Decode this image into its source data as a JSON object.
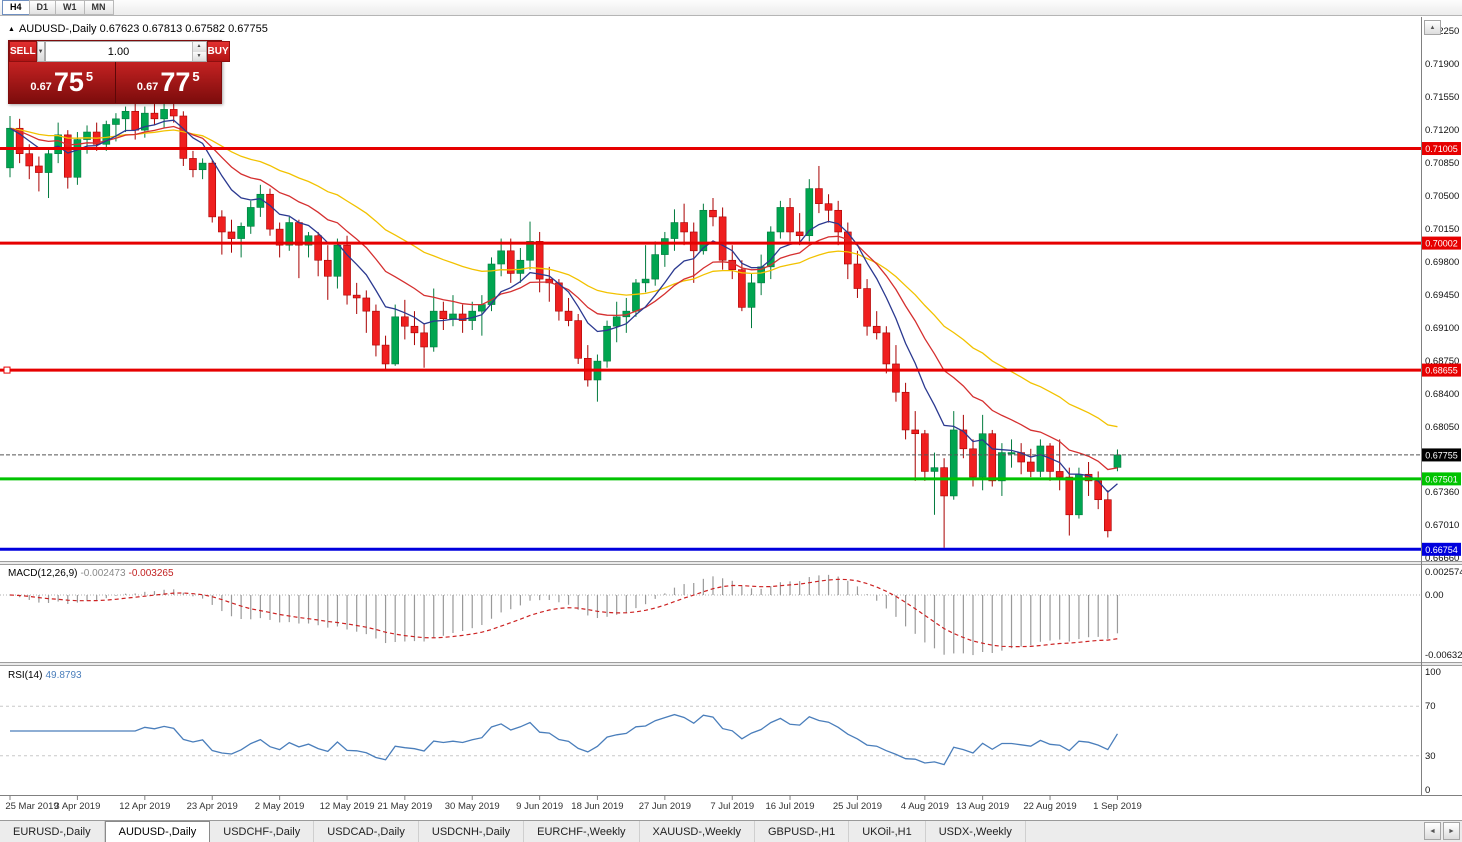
{
  "icons": {
    "collapse": "▲",
    "dropdown": "▼",
    "spin_up": "▲",
    "spin_down": "▼",
    "scroll_up": "▲",
    "tab_prev": "◄",
    "tab_next": "►"
  },
  "toolbar": {
    "timeframes": [
      {
        "label": "H4",
        "active": true
      },
      {
        "label": "D1",
        "active": false
      },
      {
        "label": "W1",
        "active": false
      },
      {
        "label": "MN",
        "active": false
      }
    ]
  },
  "chart_header": {
    "line": "AUDUSD-,Daily  0.67623 0.67813 0.67582 0.67755",
    "symbol": "AUDUSD-,Daily",
    "open": "0.67623",
    "high": "0.67813",
    "low": "0.67582",
    "close": "0.67755"
  },
  "trade_panel": {
    "sell_label": "SELL",
    "buy_label": "BUY",
    "volume": "1.00",
    "sell_price": {
      "prefix": "0.67",
      "big": "75",
      "sup": "5"
    },
    "buy_price": {
      "prefix": "0.67",
      "big": "77",
      "sup": "5"
    }
  },
  "price_scale": {
    "labels": [
      "0.72250",
      "0.71900",
      "0.71550",
      "0.71200",
      "0.70850",
      "0.70500",
      "0.70150",
      "0.69800",
      "0.69450",
      "0.69100",
      "0.68750",
      "0.68400",
      "0.68050",
      "0.67360",
      "0.67010",
      "0.66660"
    ]
  },
  "current_price": {
    "value": 0.67755,
    "label": "0.67755",
    "color": "#000000"
  },
  "hlines": [
    {
      "value": 0.71005,
      "label": "0.71005",
      "color": "#e60000",
      "width": 3,
      "marker": false
    },
    {
      "value": 0.70002,
      "label": "0.70002",
      "color": "#e60000",
      "width": 3,
      "marker": false
    },
    {
      "value": 0.68655,
      "label": "0.68655",
      "color": "#e60000",
      "width": 3,
      "marker": true
    },
    {
      "value": 0.67501,
      "label": "0.67501",
      "color": "#00c300",
      "width": 3,
      "marker": false
    },
    {
      "value": 0.66754,
      "label": "0.66754",
      "color": "#0000dd",
      "width": 3,
      "marker": false
    }
  ],
  "indicators": {
    "ma": [
      {
        "period": 32,
        "color": "#f2c200"
      },
      {
        "period": 16,
        "color": "#d53030"
      },
      {
        "period": 8,
        "color": "#2b3990"
      }
    ],
    "macd": {
      "label": "MACD(12,26,9)",
      "value_1": "-0.002473",
      "value_2": "-0.003265",
      "fast": 12,
      "slow": 26,
      "signal": 9,
      "scale_top": "0.002574",
      "scale_zero": "0.00",
      "scale_bottom": "-0.006326",
      "histogram_color": "#9a9a9a",
      "signal_color": "#cc2222"
    },
    "rsi": {
      "label": "RSI(14)",
      "value": "49.8793",
      "period": 14,
      "levels": [
        30,
        70
      ],
      "line_color": "#4a7ebb",
      "scale": [
        {
          "label": "100",
          "value": 100
        },
        {
          "label": "70",
          "value": 70
        },
        {
          "label": "30",
          "value": 30
        },
        {
          "label": "0",
          "value": 0
        }
      ]
    }
  },
  "x_axis": {
    "ticks": [
      {
        "index": 0,
        "label": "25 Mar 2019"
      },
      {
        "index": 7,
        "label": "3 Apr 2019"
      },
      {
        "index": 14,
        "label": "12 Apr 2019"
      },
      {
        "index": 21,
        "label": "23 Apr 2019"
      },
      {
        "index": 28,
        "label": "2 May 2019"
      },
      {
        "index": 35,
        "label": "12 May 2019"
      },
      {
        "index": 41,
        "label": "21 May 2019"
      },
      {
        "index": 48,
        "label": "30 May 2019"
      },
      {
        "index": 55,
        "label": "9 Jun 2019"
      },
      {
        "index": 61,
        "label": "18 Jun 2019"
      },
      {
        "index": 68,
        "label": "27 Jun 2019"
      },
      {
        "index": 75,
        "label": "7 Jul 2019"
      },
      {
        "index": 81,
        "label": "16 Jul 2019"
      },
      {
        "index": 88,
        "label": "25 Jul 2019"
      },
      {
        "index": 95,
        "label": "4 Aug 2019"
      },
      {
        "index": 101,
        "label": "13 Aug 2019"
      },
      {
        "index": 108,
        "label": "22 Aug 2019"
      },
      {
        "index": 115,
        "label": "1 Sep 2019"
      }
    ]
  },
  "tabs": {
    "items": [
      {
        "label": "EURUSD-,Daily",
        "active": false
      },
      {
        "label": "AUDUSD-,Daily",
        "active": true
      },
      {
        "label": "USDCHF-,Daily",
        "active": false
      },
      {
        "label": "USDCAD-,Daily",
        "active": false
      },
      {
        "label": "USDCNH-,Daily",
        "active": false
      },
      {
        "label": "EURCHF-,Weekly",
        "active": false
      },
      {
        "label": "XAUUSD-,Weekly",
        "active": false
      },
      {
        "label": "GBPUSD-,H1",
        "active": false
      },
      {
        "label": "UKOil-,H1",
        "active": false
      },
      {
        "label": "USDX-,Weekly",
        "active": false
      }
    ]
  },
  "chart_data": {
    "type": "candlestick",
    "symbol": "AUDUSD",
    "timeframe": "Daily",
    "price_range": {
      "top": 0.724,
      "bottom": 0.6663
    },
    "candles": [
      [
        "2019.03.25",
        0.708,
        0.7135,
        0.707,
        0.7122
      ],
      [
        "2019.03.26",
        0.7122,
        0.7132,
        0.7085,
        0.7095
      ],
      [
        "2019.03.27",
        0.7095,
        0.7105,
        0.7068,
        0.7082
      ],
      [
        "2019.03.28",
        0.7082,
        0.7092,
        0.7055,
        0.7075
      ],
      [
        "2019.03.29",
        0.7075,
        0.7102,
        0.7048,
        0.7095
      ],
      [
        "2019.04.01",
        0.7095,
        0.7128,
        0.7085,
        0.7115
      ],
      [
        "2019.04.02",
        0.7115,
        0.712,
        0.7058,
        0.707
      ],
      [
        "2019.04.03",
        0.707,
        0.7118,
        0.7062,
        0.711
      ],
      [
        "2019.04.04",
        0.711,
        0.7125,
        0.7095,
        0.7118
      ],
      [
        "2019.04.05",
        0.7118,
        0.7128,
        0.7098,
        0.7105
      ],
      [
        "2019.04.08",
        0.7105,
        0.713,
        0.7098,
        0.7126
      ],
      [
        "2019.04.09",
        0.7126,
        0.7138,
        0.7108,
        0.7132
      ],
      [
        "2019.04.10",
        0.7132,
        0.7145,
        0.7118,
        0.714
      ],
      [
        "2019.04.11",
        0.714,
        0.7148,
        0.711,
        0.712
      ],
      [
        "2019.04.12",
        0.712,
        0.7145,
        0.7112,
        0.7138
      ],
      [
        "2019.04.15",
        0.7138,
        0.715,
        0.7125,
        0.7132
      ],
      [
        "2019.04.16",
        0.7132,
        0.7148,
        0.7122,
        0.7142
      ],
      [
        "2019.04.17",
        0.7142,
        0.7152,
        0.7128,
        0.7135
      ],
      [
        "2019.04.18",
        0.7135,
        0.714,
        0.7082,
        0.709
      ],
      [
        "2019.04.19",
        0.709,
        0.7098,
        0.707,
        0.7078
      ],
      [
        "2019.04.22",
        0.7078,
        0.709,
        0.7068,
        0.7085
      ],
      [
        "2019.04.23",
        0.7085,
        0.7088,
        0.7022,
        0.7028
      ],
      [
        "2019.04.24",
        0.7028,
        0.7035,
        0.6988,
        0.7012
      ],
      [
        "2019.04.25",
        0.7012,
        0.7025,
        0.699,
        0.7005
      ],
      [
        "2019.04.26",
        0.7005,
        0.7022,
        0.6985,
        0.7018
      ],
      [
        "2019.04.29",
        0.7018,
        0.7045,
        0.701,
        0.7038
      ],
      [
        "2019.04.30",
        0.7038,
        0.7062,
        0.7028,
        0.7052
      ],
      [
        "2019.05.01",
        0.7052,
        0.7058,
        0.7008,
        0.7015
      ],
      [
        "2019.05.02",
        0.7015,
        0.7022,
        0.6985,
        0.6998
      ],
      [
        "2019.05.03",
        0.6998,
        0.7028,
        0.6992,
        0.7022
      ],
      [
        "2019.05.06",
        0.7022,
        0.7025,
        0.6963,
        0.6998
      ],
      [
        "2019.05.07",
        0.6998,
        0.7012,
        0.6985,
        0.7008
      ],
      [
        "2019.05.08",
        0.7008,
        0.7012,
        0.6965,
        0.6982
      ],
      [
        "2019.05.09",
        0.6982,
        0.6998,
        0.694,
        0.6965
      ],
      [
        "2019.05.10",
        0.6965,
        0.7005,
        0.6952,
        0.6998
      ],
      [
        "2019.05.13",
        0.6998,
        0.7008,
        0.6935,
        0.6945
      ],
      [
        "2019.05.14",
        0.6945,
        0.6958,
        0.6925,
        0.6942
      ],
      [
        "2019.05.15",
        0.6942,
        0.695,
        0.6905,
        0.6928
      ],
      [
        "2019.05.16",
        0.6928,
        0.6935,
        0.688,
        0.6892
      ],
      [
        "2019.05.17",
        0.6892,
        0.6902,
        0.6865,
        0.6872
      ],
      [
        "2019.05.20",
        0.6872,
        0.6935,
        0.687,
        0.6922
      ],
      [
        "2019.05.21",
        0.6922,
        0.694,
        0.6898,
        0.6912
      ],
      [
        "2019.05.22",
        0.6912,
        0.6928,
        0.6892,
        0.6905
      ],
      [
        "2019.05.23",
        0.6905,
        0.6915,
        0.6868,
        0.689
      ],
      [
        "2019.05.24",
        0.689,
        0.6952,
        0.6885,
        0.6928
      ],
      [
        "2019.05.27",
        0.6928,
        0.6938,
        0.6908,
        0.692
      ],
      [
        "2019.05.28",
        0.692,
        0.6945,
        0.6912,
        0.6925
      ],
      [
        "2019.05.29",
        0.6925,
        0.6935,
        0.6905,
        0.6918
      ],
      [
        "2019.05.30",
        0.6918,
        0.6938,
        0.6908,
        0.6928
      ],
      [
        "2019.05.31",
        0.6928,
        0.6945,
        0.6902,
        0.6935
      ],
      [
        "2019.06.03",
        0.6935,
        0.6985,
        0.6928,
        0.6978
      ],
      [
        "2019.06.04",
        0.6978,
        0.7005,
        0.6965,
        0.6992
      ],
      [
        "2019.06.05",
        0.6992,
        0.7005,
        0.6958,
        0.6968
      ],
      [
        "2019.06.06",
        0.6968,
        0.6995,
        0.6958,
        0.6982
      ],
      [
        "2019.06.07",
        0.6982,
        0.7023,
        0.6972,
        0.7002
      ],
      [
        "2019.06.10",
        0.7002,
        0.7012,
        0.6948,
        0.6962
      ],
      [
        "2019.06.11",
        0.6962,
        0.6975,
        0.6938,
        0.6958
      ],
      [
        "2019.06.12",
        0.6958,
        0.6962,
        0.6918,
        0.6928
      ],
      [
        "2019.06.13",
        0.6928,
        0.6942,
        0.6912,
        0.6918
      ],
      [
        "2019.06.14",
        0.6918,
        0.6925,
        0.6872,
        0.6878
      ],
      [
        "2019.06.17",
        0.6878,
        0.6892,
        0.6848,
        0.6855
      ],
      [
        "2019.06.18",
        0.6855,
        0.6882,
        0.6832,
        0.6875
      ],
      [
        "2019.06.19",
        0.6875,
        0.6918,
        0.6868,
        0.6912
      ],
      [
        "2019.06.20",
        0.6912,
        0.6938,
        0.6895,
        0.6922
      ],
      [
        "2019.06.21",
        0.6922,
        0.6942,
        0.6905,
        0.6928
      ],
      [
        "2019.06.24",
        0.6928,
        0.6962,
        0.6922,
        0.6958
      ],
      [
        "2019.06.25",
        0.6958,
        0.6998,
        0.6948,
        0.6962
      ],
      [
        "2019.06.26",
        0.6962,
        0.7002,
        0.6955,
        0.6988
      ],
      [
        "2019.06.27",
        0.6988,
        0.7012,
        0.6975,
        0.7005
      ],
      [
        "2019.06.28",
        0.7005,
        0.7036,
        0.6992,
        0.7022
      ],
      [
        "2019.07.01",
        0.7022,
        0.7042,
        0.6998,
        0.7012
      ],
      [
        "2019.07.02",
        0.7012,
        0.7022,
        0.6958,
        0.6992
      ],
      [
        "2019.07.03",
        0.6992,
        0.7042,
        0.6988,
        0.7035
      ],
      [
        "2019.07.04",
        0.7035,
        0.7048,
        0.7018,
        0.7028
      ],
      [
        "2019.07.05",
        0.7028,
        0.7038,
        0.6972,
        0.6982
      ],
      [
        "2019.07.08",
        0.6982,
        0.6998,
        0.6962,
        0.6972
      ],
      [
        "2019.07.09",
        0.6972,
        0.6982,
        0.6928,
        0.6932
      ],
      [
        "2019.07.10",
        0.6932,
        0.6968,
        0.691,
        0.6958
      ],
      [
        "2019.07.11",
        0.6958,
        0.6988,
        0.6945,
        0.6975
      ],
      [
        "2019.07.12",
        0.6975,
        0.7018,
        0.6962,
        0.7012
      ],
      [
        "2019.07.15",
        0.7012,
        0.7045,
        0.7005,
        0.7038
      ],
      [
        "2019.07.16",
        0.7038,
        0.7048,
        0.7002,
        0.7012
      ],
      [
        "2019.07.17",
        0.7012,
        0.7032,
        0.6998,
        0.7008
      ],
      [
        "2019.07.18",
        0.7008,
        0.7068,
        0.7002,
        0.7058
      ],
      [
        "2019.07.19",
        0.7058,
        0.7082,
        0.7032,
        0.7042
      ],
      [
        "2019.07.22",
        0.7042,
        0.7052,
        0.7022,
        0.7035
      ],
      [
        "2019.07.23",
        0.7035,
        0.7045,
        0.6998,
        0.7012
      ],
      [
        "2019.07.24",
        0.7012,
        0.7022,
        0.6962,
        0.6978
      ],
      [
        "2019.07.25",
        0.6978,
        0.6992,
        0.6942,
        0.6952
      ],
      [
        "2019.07.26",
        0.6952,
        0.6962,
        0.6902,
        0.6912
      ],
      [
        "2019.07.29",
        0.6912,
        0.6928,
        0.6898,
        0.6905
      ],
      [
        "2019.07.30",
        0.6905,
        0.6912,
        0.6862,
        0.6872
      ],
      [
        "2019.07.31",
        0.6872,
        0.6892,
        0.6832,
        0.6842
      ],
      [
        "2019.08.01",
        0.6842,
        0.6852,
        0.6792,
        0.6802
      ],
      [
        "2019.08.02",
        0.6802,
        0.6822,
        0.6748,
        0.6798
      ],
      [
        "2019.08.05",
        0.6798,
        0.6802,
        0.6748,
        0.6758
      ],
      [
        "2019.08.06",
        0.6758,
        0.6778,
        0.6712,
        0.6762
      ],
      [
        "2019.08.07",
        0.6762,
        0.6772,
        0.6677,
        0.6732
      ],
      [
        "2019.08.08",
        0.6732,
        0.6822,
        0.6728,
        0.6802
      ],
      [
        "2019.08.09",
        0.6802,
        0.6818,
        0.6772,
        0.6782
      ],
      [
        "2019.08.12",
        0.6782,
        0.6792,
        0.6742,
        0.6752
      ],
      [
        "2019.08.13",
        0.6752,
        0.6818,
        0.6738,
        0.6798
      ],
      [
        "2019.08.14",
        0.6798,
        0.6802,
        0.6742,
        0.6748
      ],
      [
        "2019.08.15",
        0.6748,
        0.6788,
        0.6732,
        0.6778
      ],
      [
        "2019.08.16",
        0.6778,
        0.6792,
        0.6762,
        0.6778
      ],
      [
        "2019.08.19",
        0.6778,
        0.6788,
        0.6755,
        0.6768
      ],
      [
        "2019.08.20",
        0.6768,
        0.6782,
        0.6752,
        0.6758
      ],
      [
        "2019.08.21",
        0.6758,
        0.6792,
        0.6752,
        0.6785
      ],
      [
        "2019.08.22",
        0.6785,
        0.6788,
        0.6748,
        0.6758
      ],
      [
        "2019.08.23",
        0.6758,
        0.6792,
        0.6738,
        0.6752
      ],
      [
        "2019.08.26",
        0.6752,
        0.6762,
        0.669,
        0.6712
      ],
      [
        "2019.08.27",
        0.6712,
        0.6762,
        0.6708,
        0.6755
      ],
      [
        "2019.08.28",
        0.6755,
        0.6768,
        0.6732,
        0.6748
      ],
      [
        "2019.08.29",
        0.6748,
        0.6758,
        0.6718,
        0.6728
      ],
      [
        "2019.08.30",
        0.6728,
        0.6738,
        0.6688,
        0.6695
      ],
      [
        "2019.09.02",
        0.67623,
        0.67813,
        0.67582,
        0.67755
      ]
    ]
  }
}
